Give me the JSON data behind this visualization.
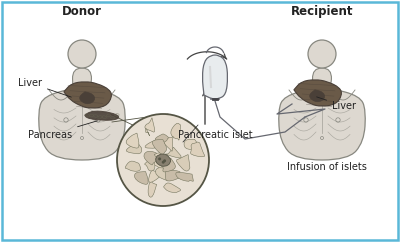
{
  "title_donor": "Donor",
  "title_recipient": "Recipient",
  "label_liver_left": "Liver",
  "label_pancreas": "Pancreas",
  "label_islet": "Pancreatic islet",
  "label_liver_right": "Liver",
  "label_infusion": "Infusion of islets",
  "bg_color": "#ffffff",
  "border_color": "#5ab8d8",
  "body_line_color": "#888880",
  "organ_dark": "#4a4038",
  "organ_mid": "#6a5a48",
  "organ_light": "#9a8878",
  "text_color": "#222222",
  "title_fontsize": 8.5,
  "label_fontsize": 7.0,
  "fig_width": 4.0,
  "fig_height": 2.42,
  "body_face": "#ddd8d0",
  "islet_bg": "#e8e0d4",
  "iv_face": "#e8ecee",
  "arrow_color": "#444444"
}
